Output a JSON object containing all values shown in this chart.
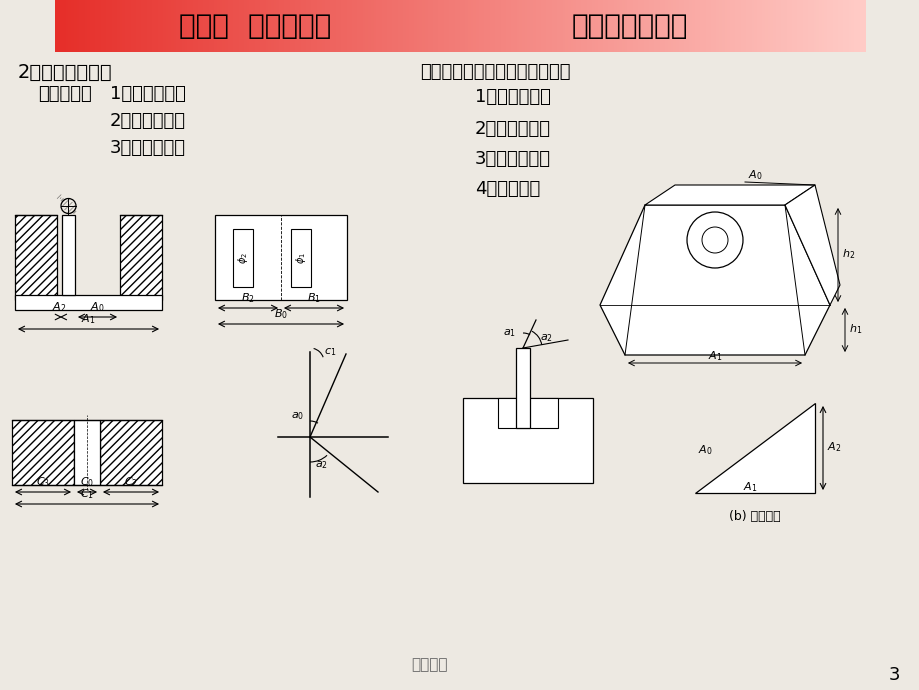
{
  "title_left": "第二章  工艺尺寸链",
  "title_right": "第一节基本概念",
  "section2_title": "2、尺寸链的分类",
  "section2_left_label": "按功能分：",
  "section2_left_items": [
    "1）装配尺寸链",
    "2）零件尺寸链",
    "3）工艺尺寸链"
  ],
  "section2_right_label": "按几何特征和所处空间位置分：",
  "section2_right_items": [
    "1）直线尺寸链",
    "2）角度尺寸链",
    "3）平面尺寸链",
    "4）空间尺寸"
  ],
  "watermark": "苍松课资",
  "page_num": "3",
  "caption_b": "(b) 尺寸链图",
  "background_color": "#ede9e2"
}
